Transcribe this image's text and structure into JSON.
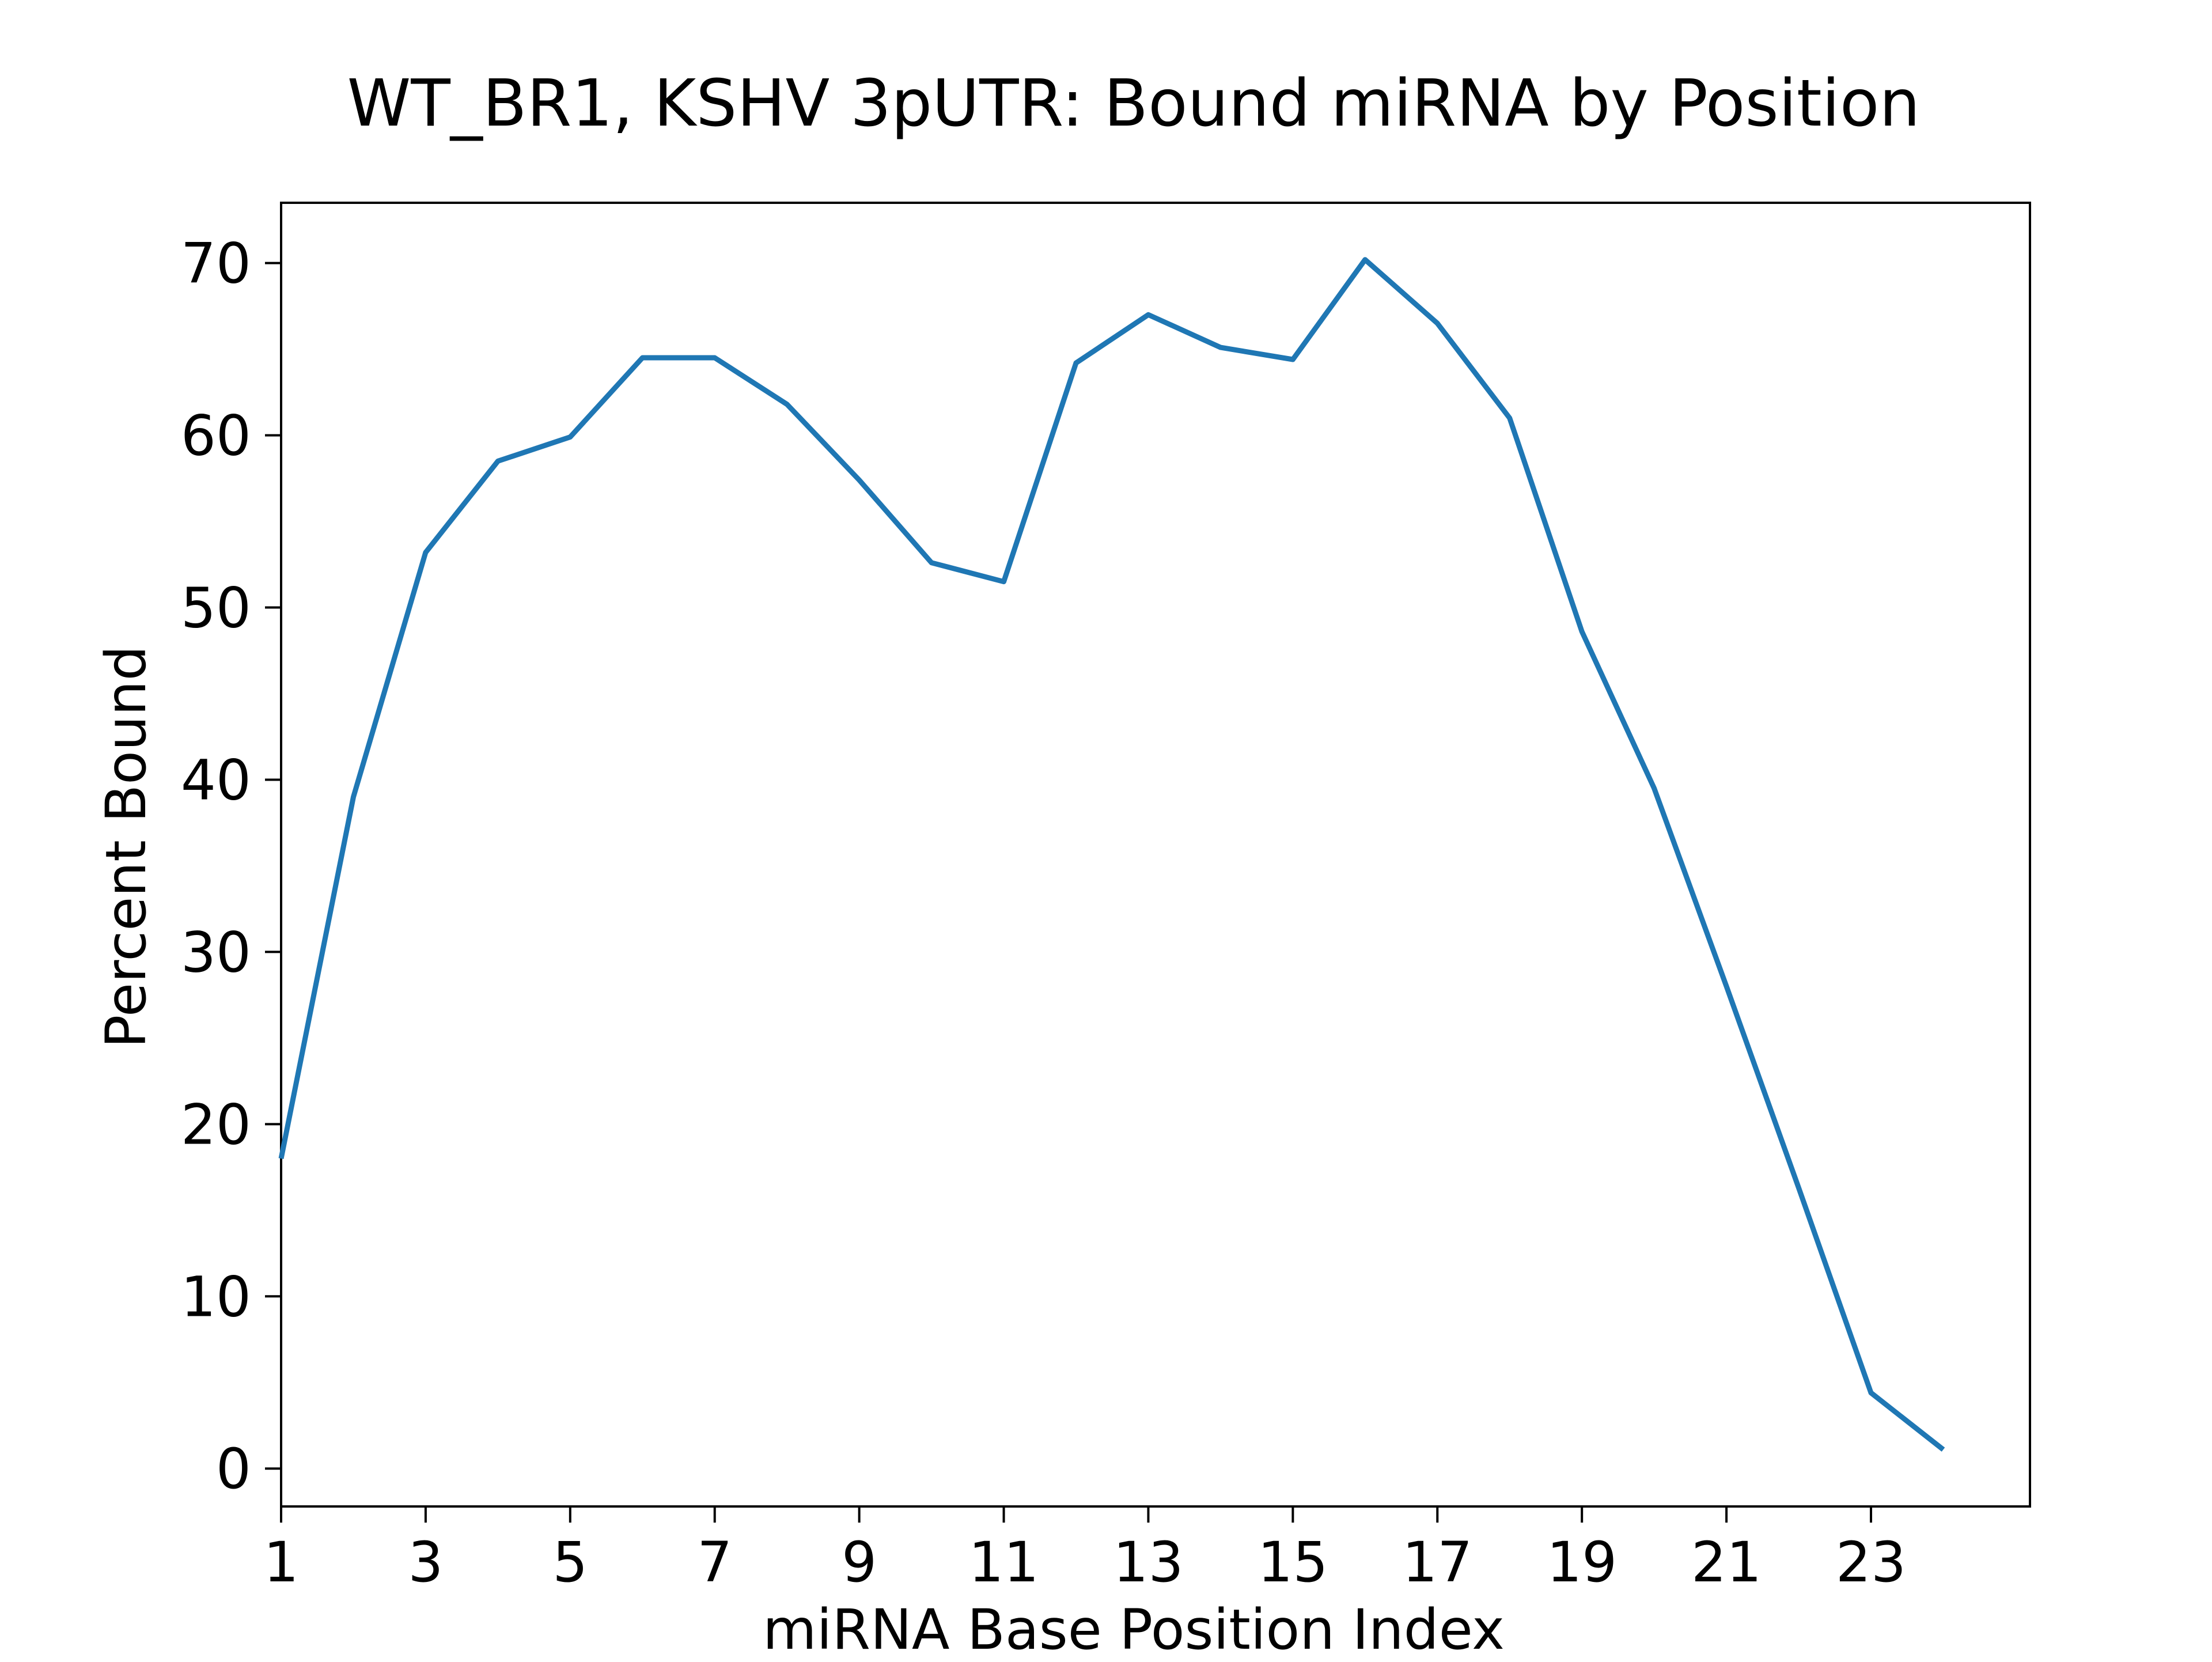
{
  "chart_data": {
    "type": "line",
    "title": "WT_BR1, KSHV 3pUTR: Bound miRNA by Position",
    "xlabel": "miRNA Base Position Index",
    "ylabel": "Percent Bound",
    "xlim": [
      1,
      25.2
    ],
    "ylim": [
      -2.2,
      73.5
    ],
    "xticks": [
      1,
      3,
      5,
      7,
      9,
      11,
      13,
      15,
      17,
      19,
      21,
      23
    ],
    "yticks": [
      0,
      10,
      20,
      30,
      40,
      50,
      60,
      70
    ],
    "grid": false,
    "series": [
      {
        "color": "#1f77b4",
        "x": [
          1,
          2,
          3,
          4,
          5,
          6,
          7,
          8,
          9,
          10,
          11,
          12,
          13,
          14,
          15,
          16,
          17,
          18,
          19,
          20,
          21,
          22,
          23,
          24
        ],
        "y": [
          18,
          39,
          53.2,
          58.5,
          59.9,
          64.5,
          64.5,
          61.8,
          57.4,
          52.6,
          51.5,
          64.2,
          67,
          65.1,
          64.4,
          70.2,
          66.5,
          61,
          48.6,
          39.5,
          28,
          16.3,
          4.4,
          1.1
        ]
      }
    ]
  }
}
